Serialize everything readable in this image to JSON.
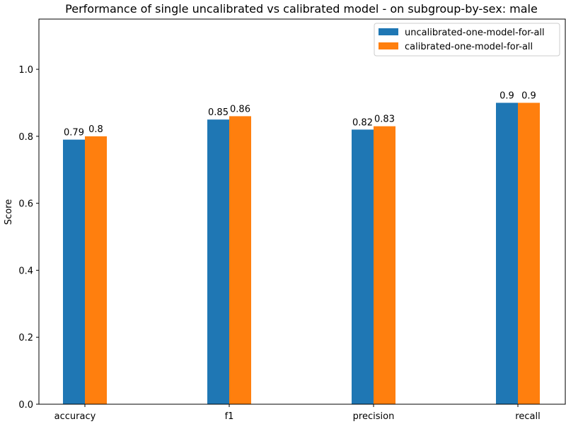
{
  "chart_data": {
    "type": "bar",
    "title": "Performance of single uncalibrated vs calibrated model - on subgroup-by-sex: male",
    "xlabel": "",
    "ylabel": "Score",
    "ylim": [
      0,
      1.15
    ],
    "yticks": [
      "0.0",
      "0.2",
      "0.4",
      "0.6",
      "0.8",
      "1.0"
    ],
    "categories": [
      "accuracy",
      "f1",
      "precision",
      "recall"
    ],
    "series": [
      {
        "name": "uncalibrated-one-model-for-all",
        "color": "#1f77b4",
        "values": [
          0.79,
          0.85,
          0.82,
          0.9
        ]
      },
      {
        "name": "calibrated-one-model-for-all",
        "color": "#ff7f0e",
        "values": [
          0.8,
          0.86,
          0.83,
          0.9
        ]
      }
    ],
    "legend": "top-right",
    "grid": false
  }
}
